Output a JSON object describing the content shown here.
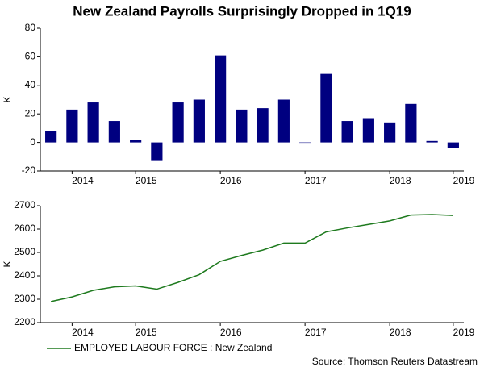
{
  "title": "New Zealand Payrolls Surprisingly Dropped in 1Q19",
  "source": "Source: Thomson Reuters Datastream",
  "chart_data": [
    {
      "type": "bar",
      "ylabel": "K",
      "color": "#000080",
      "categories": [
        null,
        "2014",
        null,
        null,
        "2015",
        null,
        null,
        null,
        "2016",
        null,
        null,
        null,
        "2017",
        null,
        null,
        null,
        "2018",
        null,
        null,
        "2019"
      ],
      "values": [
        8,
        23,
        28,
        15,
        2,
        -13,
        28,
        30,
        61,
        23,
        24,
        30,
        0,
        48,
        15,
        17,
        14,
        27,
        1,
        -4
      ],
      "ylim": [
        -20,
        80
      ],
      "yticks": [
        -20,
        0,
        20,
        40,
        60,
        80
      ]
    },
    {
      "type": "line",
      "ylabel": "K",
      "categories": [
        null,
        "2014",
        null,
        null,
        "2015",
        null,
        null,
        null,
        "2016",
        null,
        null,
        null,
        "2017",
        null,
        null,
        null,
        "2018",
        null,
        null,
        "2019"
      ],
      "series": [
        {
          "name": "EMPLOYED LABOUR FORCE : New Zealand",
          "color": "#1e7a1e",
          "values": [
            2290,
            2310,
            2338,
            2353,
            2357,
            2343,
            2372,
            2405,
            2462,
            2487,
            2510,
            2540,
            2540,
            2588,
            2605,
            2620,
            2635,
            2660,
            2662,
            2658
          ]
        }
      ],
      "ylim": [
        2200,
        2700
      ],
      "yticks": [
        2200,
        2300,
        2400,
        2500,
        2600,
        2700
      ]
    }
  ]
}
